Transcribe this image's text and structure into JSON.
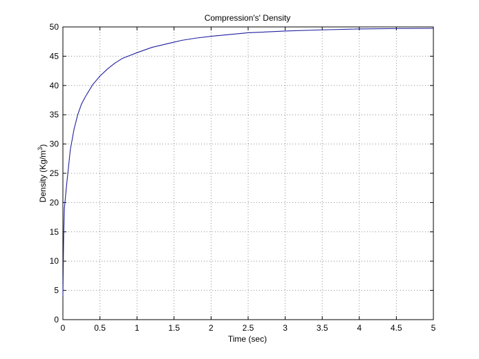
{
  "chart_data": {
    "type": "line",
    "title": "Compression's' Density",
    "xlabel": "Time (sec)",
    "ylabel": {
      "prefix": "Density (Kg/m",
      "superscript": "3",
      "suffix": ")"
    },
    "xlim": [
      0,
      5
    ],
    "ylim": [
      0,
      50
    ],
    "xticks": [
      0,
      0.5,
      1,
      1.5,
      2,
      2.5,
      3,
      3.5,
      4,
      4.5,
      5
    ],
    "xtick_labels": [
      "0",
      "0.5",
      "1",
      "1.5",
      "2",
      "2.5",
      "3",
      "3.5",
      "4",
      "4.5",
      "5"
    ],
    "yticks": [
      0,
      5,
      10,
      15,
      20,
      25,
      30,
      35,
      40,
      45,
      50
    ],
    "ytick_labels": [
      "0",
      "5",
      "10",
      "15",
      "20",
      "25",
      "30",
      "35",
      "40",
      "45",
      "50"
    ],
    "grid": true,
    "legend": "none",
    "series": [
      {
        "color": "#1f1f9e",
        "x": [
          0,
          0.01,
          0.02,
          0.05,
          0.1,
          0.15,
          0.2,
          0.25,
          0.3,
          0.4,
          0.5,
          0.6,
          0.7,
          0.8,
          0.9,
          1.0,
          1.2,
          1.4,
          1.5,
          1.6,
          1.8,
          2.0,
          2.5,
          3.0,
          3.5,
          4.0,
          4.5,
          5.0
        ],
        "y": [
          4,
          14,
          19,
          23,
          29,
          32.5,
          35,
          36.8,
          38,
          40.1,
          41.6,
          42.8,
          43.8,
          44.6,
          45.1,
          45.6,
          46.5,
          47.1,
          47.4,
          47.7,
          48.1,
          48.4,
          49,
          49.3,
          49.5,
          49.65,
          49.72,
          49.75
        ]
      }
    ]
  }
}
